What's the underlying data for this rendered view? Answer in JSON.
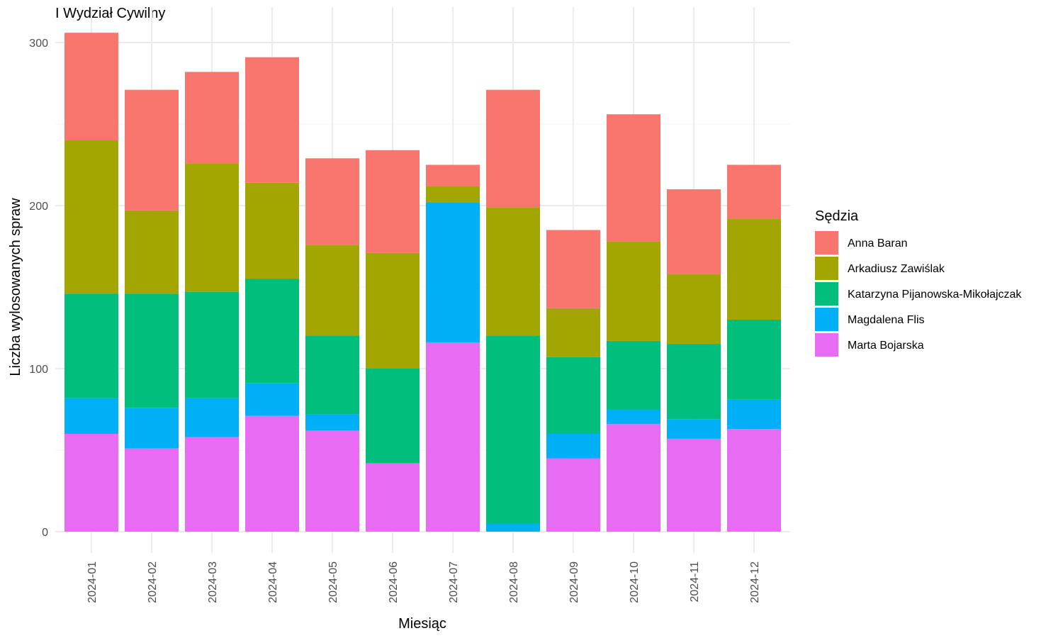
{
  "chart_data": {
    "type": "bar",
    "stacked": true,
    "title": "I Wydział Cywilny",
    "xlabel": "Miesiąc",
    "ylabel": "Liczba wylosowanych spraw",
    "ylim": [
      0,
      310
    ],
    "yticks": [
      0,
      100,
      200,
      300
    ],
    "grid": true,
    "legend_title": "Sędzia",
    "legend_position": "right",
    "categories": [
      "2024-01",
      "2024-02",
      "2024-03",
      "2024-04",
      "2024-05",
      "2024-06",
      "2024-07",
      "2024-08",
      "2024-09",
      "2024-10",
      "2024-11",
      "2024-12"
    ],
    "series": [
      {
        "name": "Marta Bojarska",
        "color": "#E76BF3",
        "values": [
          60,
          51,
          58,
          71,
          62,
          42,
          116,
          0,
          45,
          66,
          57,
          63
        ]
      },
      {
        "name": "Magdalena Flis",
        "color": "#00B0F6",
        "values": [
          22,
          25,
          24,
          20,
          10,
          0,
          86,
          5,
          15,
          9,
          12,
          18
        ]
      },
      {
        "name": "Katarzyna Pijanowska-Mikołajczak",
        "color": "#00BF7D",
        "values": [
          64,
          70,
          65,
          64,
          48,
          58,
          0,
          115,
          47,
          42,
          46,
          49
        ]
      },
      {
        "name": "Arkadiusz Zawiślak",
        "color": "#A3A500",
        "values": [
          94,
          51,
          79,
          59,
          56,
          71,
          10,
          79,
          30,
          61,
          43,
          62
        ]
      },
      {
        "name": "Anna Baran",
        "color": "#F8766D",
        "values": [
          66,
          74,
          56,
          77,
          53,
          63,
          13,
          72,
          48,
          78,
          52,
          33
        ]
      }
    ],
    "legend_order": [
      "Anna Baran",
      "Arkadiusz Zawiślak",
      "Katarzyna Pijanowska-Mikołajczak",
      "Magdalena Flis",
      "Marta Bojarska"
    ]
  }
}
